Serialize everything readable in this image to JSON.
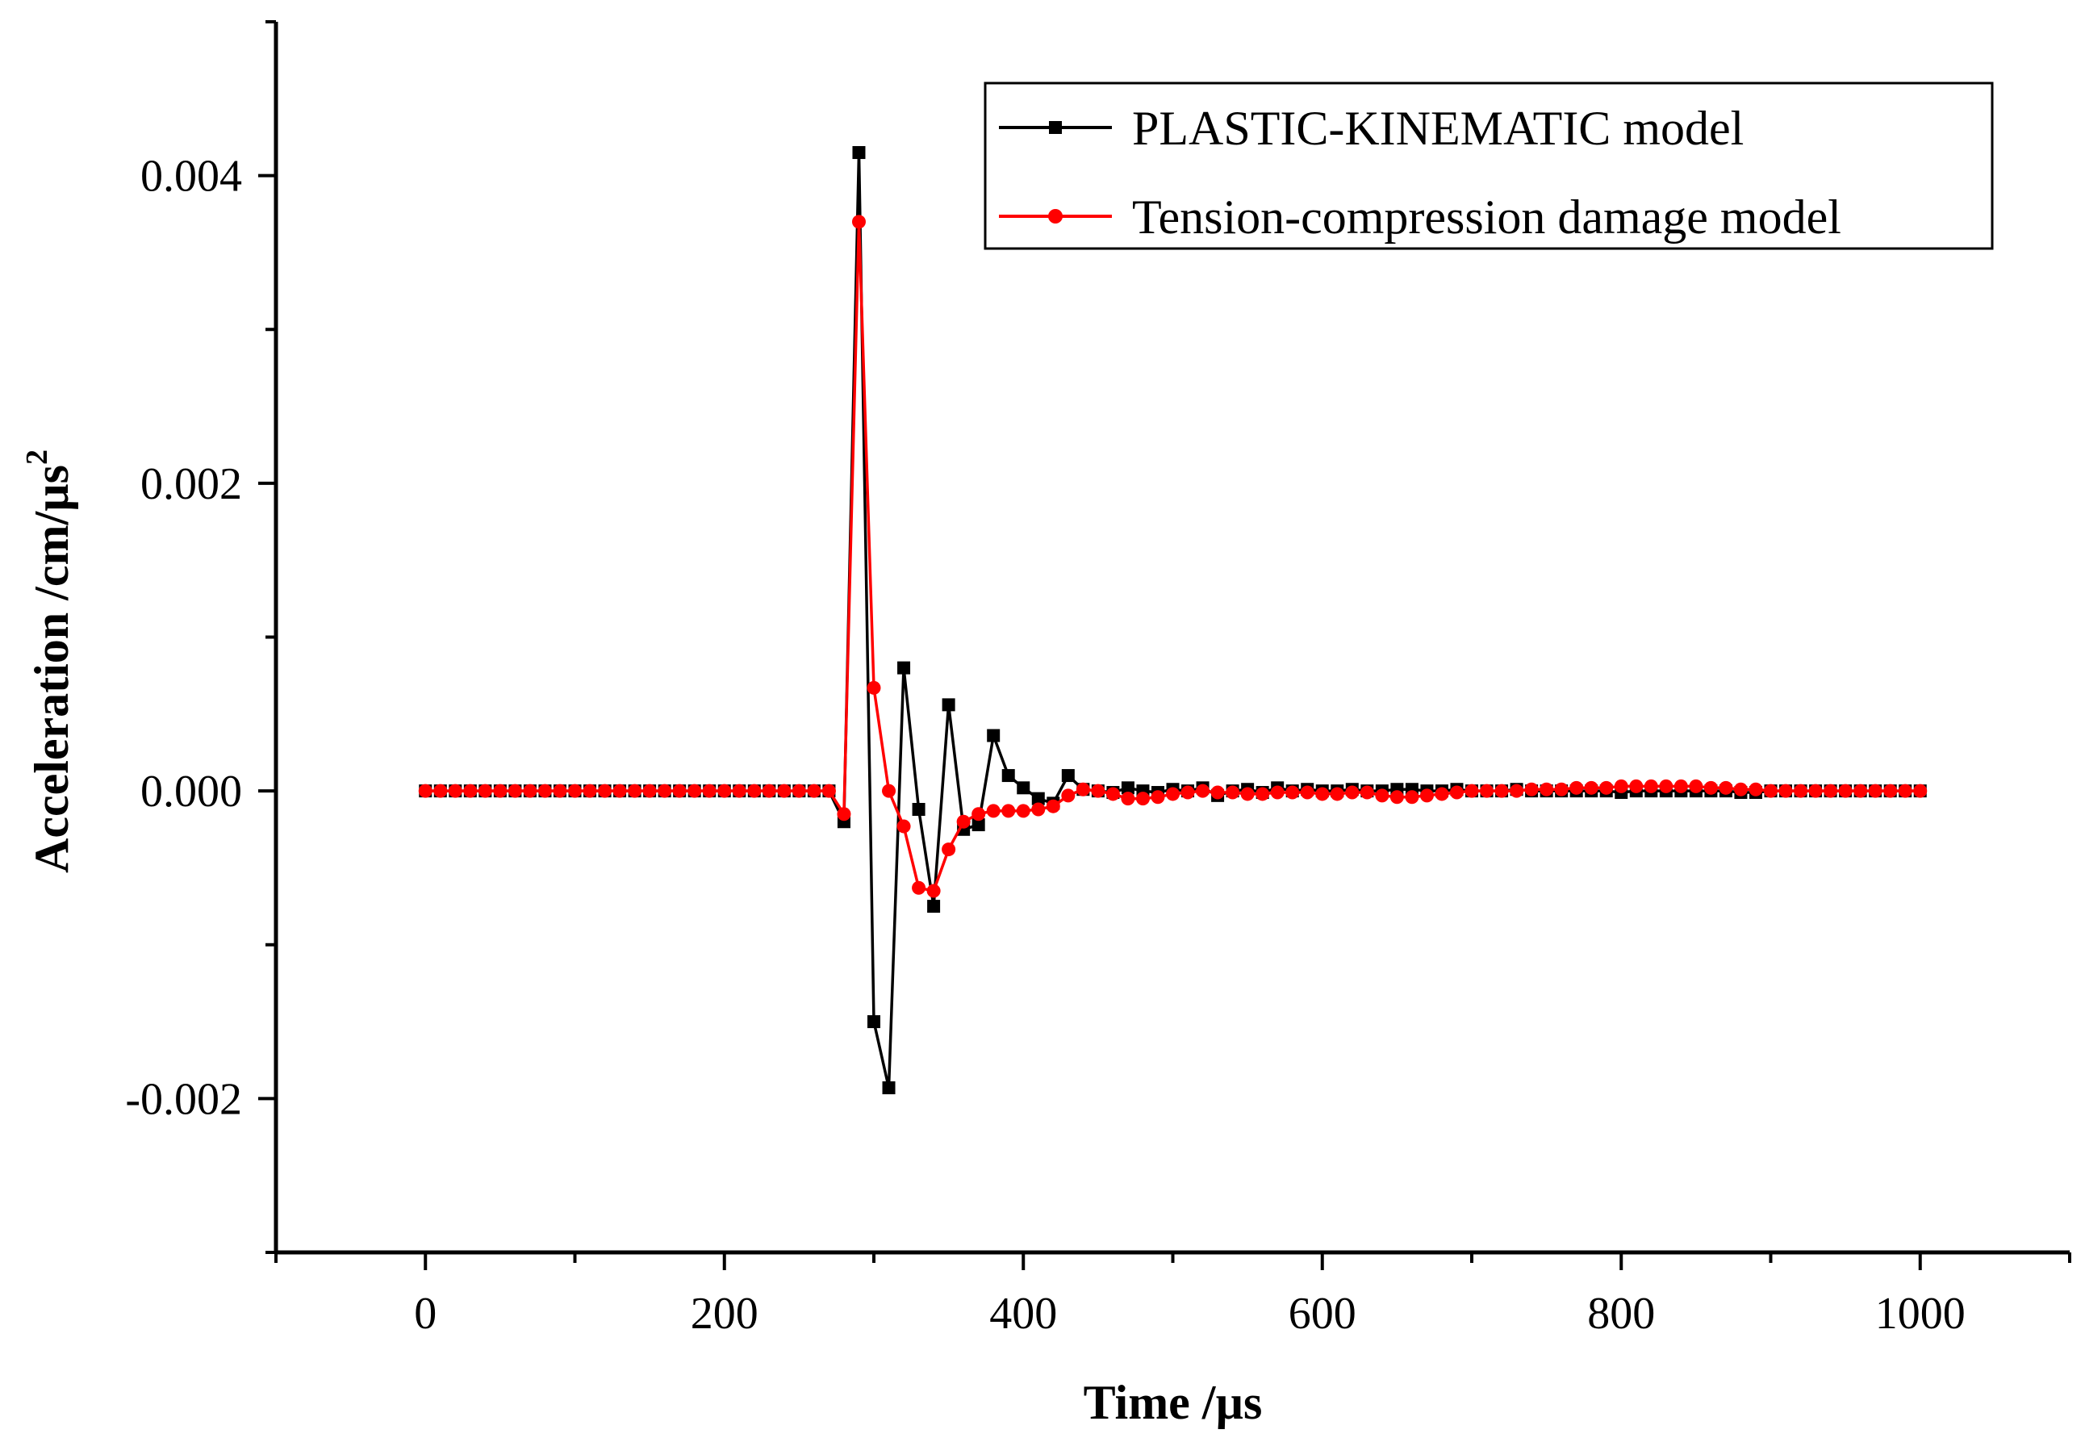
{
  "chart_data": {
    "type": "line",
    "title": "",
    "xlabel": "Time /µs",
    "ylabel": "Acceleration /cm/µs",
    "ylabel_superscript": "2",
    "xlim": [
      -100,
      1100
    ],
    "ylim": [
      -0.003,
      0.005
    ],
    "xticks": [
      0,
      200,
      400,
      600,
      800,
      1000
    ],
    "xtick_labels": [
      "0",
      "200",
      "400",
      "600",
      "800",
      "1000"
    ],
    "yticks": [
      -0.002,
      0.0,
      0.002,
      0.004
    ],
    "ytick_labels": [
      "-0.002",
      "0.000",
      "0.002",
      "0.004"
    ],
    "grid": false,
    "legend_position": "top-right",
    "series": [
      {
        "name": "PLASTIC-KINEMATIC model",
        "color": "#000000",
        "marker": "square",
        "x": [
          0,
          10,
          20,
          30,
          40,
          50,
          60,
          70,
          80,
          90,
          100,
          110,
          120,
          130,
          140,
          150,
          160,
          170,
          180,
          190,
          200,
          210,
          220,
          230,
          240,
          250,
          260,
          270,
          280,
          290,
          300,
          310,
          320,
          330,
          340,
          350,
          360,
          370,
          380,
          390,
          400,
          410,
          420,
          430,
          440,
          450,
          460,
          470,
          480,
          490,
          500,
          510,
          520,
          530,
          540,
          550,
          560,
          570,
          580,
          590,
          600,
          610,
          620,
          630,
          640,
          650,
          660,
          670,
          680,
          690,
          700,
          710,
          720,
          730,
          740,
          750,
          760,
          770,
          780,
          790,
          800,
          810,
          820,
          830,
          840,
          850,
          860,
          870,
          880,
          890,
          900,
          910,
          920,
          930,
          940,
          950,
          960,
          970,
          980,
          990,
          1000
        ],
        "y": [
          0,
          0,
          0,
          0,
          0,
          0,
          0,
          0,
          0,
          0,
          0,
          0,
          0,
          0,
          0,
          0,
          0,
          0,
          0,
          0,
          0,
          0,
          0,
          0,
          0,
          0,
          0,
          0,
          -0.0002,
          0.00415,
          -0.0015,
          -0.00193,
          0.0008,
          -0.00012,
          -0.00075,
          0.00056,
          -0.00025,
          -0.00022,
          0.00036,
          0.0001,
          2e-05,
          -5e-05,
          -8e-05,
          0.0001,
          1e-05,
          0,
          -1e-05,
          2e-05,
          0,
          -1e-05,
          1e-05,
          0,
          2e-05,
          -3e-05,
          0,
          1e-05,
          -1e-05,
          2e-05,
          0,
          1e-05,
          0,
          0,
          1e-05,
          0,
          0,
          1e-05,
          1e-05,
          0,
          0,
          1e-05,
          0,
          0,
          0,
          1e-05,
          0,
          0,
          0,
          0,
          0,
          0,
          -1e-05,
          0,
          0,
          0,
          0,
          0,
          0,
          0,
          -1e-05,
          -1e-05,
          0,
          0,
          0,
          0,
          0,
          0,
          0,
          0,
          0,
          0,
          0
        ]
      },
      {
        "name": "Tension-compression damage model",
        "color": "#ff0000",
        "marker": "circle",
        "x": [
          0,
          10,
          20,
          30,
          40,
          50,
          60,
          70,
          80,
          90,
          100,
          110,
          120,
          130,
          140,
          150,
          160,
          170,
          180,
          190,
          200,
          210,
          220,
          230,
          240,
          250,
          260,
          270,
          280,
          290,
          300,
          310,
          320,
          330,
          340,
          350,
          360,
          370,
          380,
          390,
          400,
          410,
          420,
          430,
          440,
          450,
          460,
          470,
          480,
          490,
          500,
          510,
          520,
          530,
          540,
          550,
          560,
          570,
          580,
          590,
          600,
          610,
          620,
          630,
          640,
          650,
          660,
          670,
          680,
          690,
          700,
          710,
          720,
          730,
          740,
          750,
          760,
          770,
          780,
          790,
          800,
          810,
          820,
          830,
          840,
          850,
          860,
          870,
          880,
          890,
          900,
          910,
          920,
          930,
          940,
          950,
          960,
          970,
          980,
          990,
          1000
        ],
        "y": [
          0,
          0,
          0,
          0,
          0,
          0,
          0,
          0,
          0,
          0,
          0,
          0,
          0,
          0,
          0,
          0,
          0,
          0,
          0,
          0,
          0,
          0,
          0,
          0,
          0,
          0,
          0,
          0,
          -0.00015,
          0.0037,
          0.00067,
          0,
          -0.00023,
          -0.00063,
          -0.00065,
          -0.00038,
          -0.0002,
          -0.00015,
          -0.00013,
          -0.00013,
          -0.00013,
          -0.00012,
          -0.0001,
          -3e-05,
          1e-05,
          0,
          -2e-05,
          -5e-05,
          -5e-05,
          -4e-05,
          -2e-05,
          -1e-05,
          0,
          -1e-05,
          -1e-05,
          -2e-05,
          -2e-05,
          -1e-05,
          -1e-05,
          -1e-05,
          -2e-05,
          -2e-05,
          -1e-05,
          -1e-05,
          -3e-05,
          -4e-05,
          -4e-05,
          -3e-05,
          -2e-05,
          -1e-05,
          0,
          0,
          0,
          0,
          1e-05,
          1e-05,
          1e-05,
          2e-05,
          2e-05,
          2e-05,
          3e-05,
          3e-05,
          3e-05,
          3e-05,
          3e-05,
          3e-05,
          2e-05,
          2e-05,
          1e-05,
          1e-05,
          0,
          0,
          0,
          0,
          0,
          0,
          0,
          0,
          0,
          0,
          0
        ]
      }
    ]
  }
}
